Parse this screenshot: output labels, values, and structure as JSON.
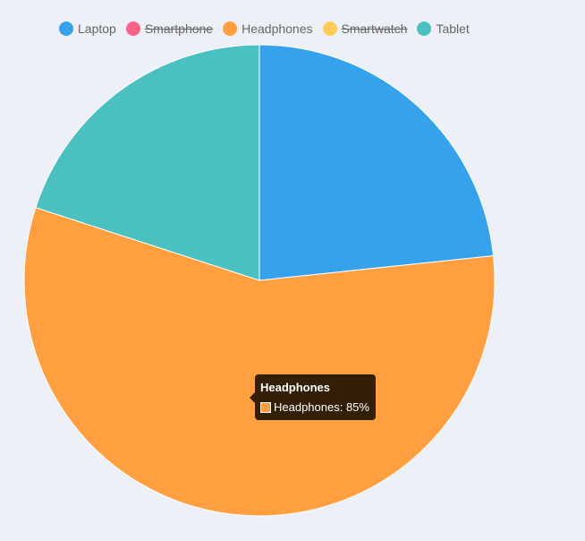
{
  "chart_data": {
    "type": "pie",
    "categories": [
      "Laptop",
      "Smartphone",
      "Headphones",
      "Smartwatch",
      "Tablet"
    ],
    "hidden": [
      false,
      true,
      false,
      true,
      false
    ],
    "values": [
      35,
      0,
      85,
      0,
      30
    ],
    "colors": [
      "#36a2eb",
      "#ff6384",
      "#ff9f40",
      "#ffcd56",
      "#4bc0c0"
    ],
    "unit": "%",
    "legend_position": "top-left"
  },
  "tooltip": {
    "title": "Headphones",
    "label": "Headphones: 85%",
    "color": "#ff9f40"
  }
}
